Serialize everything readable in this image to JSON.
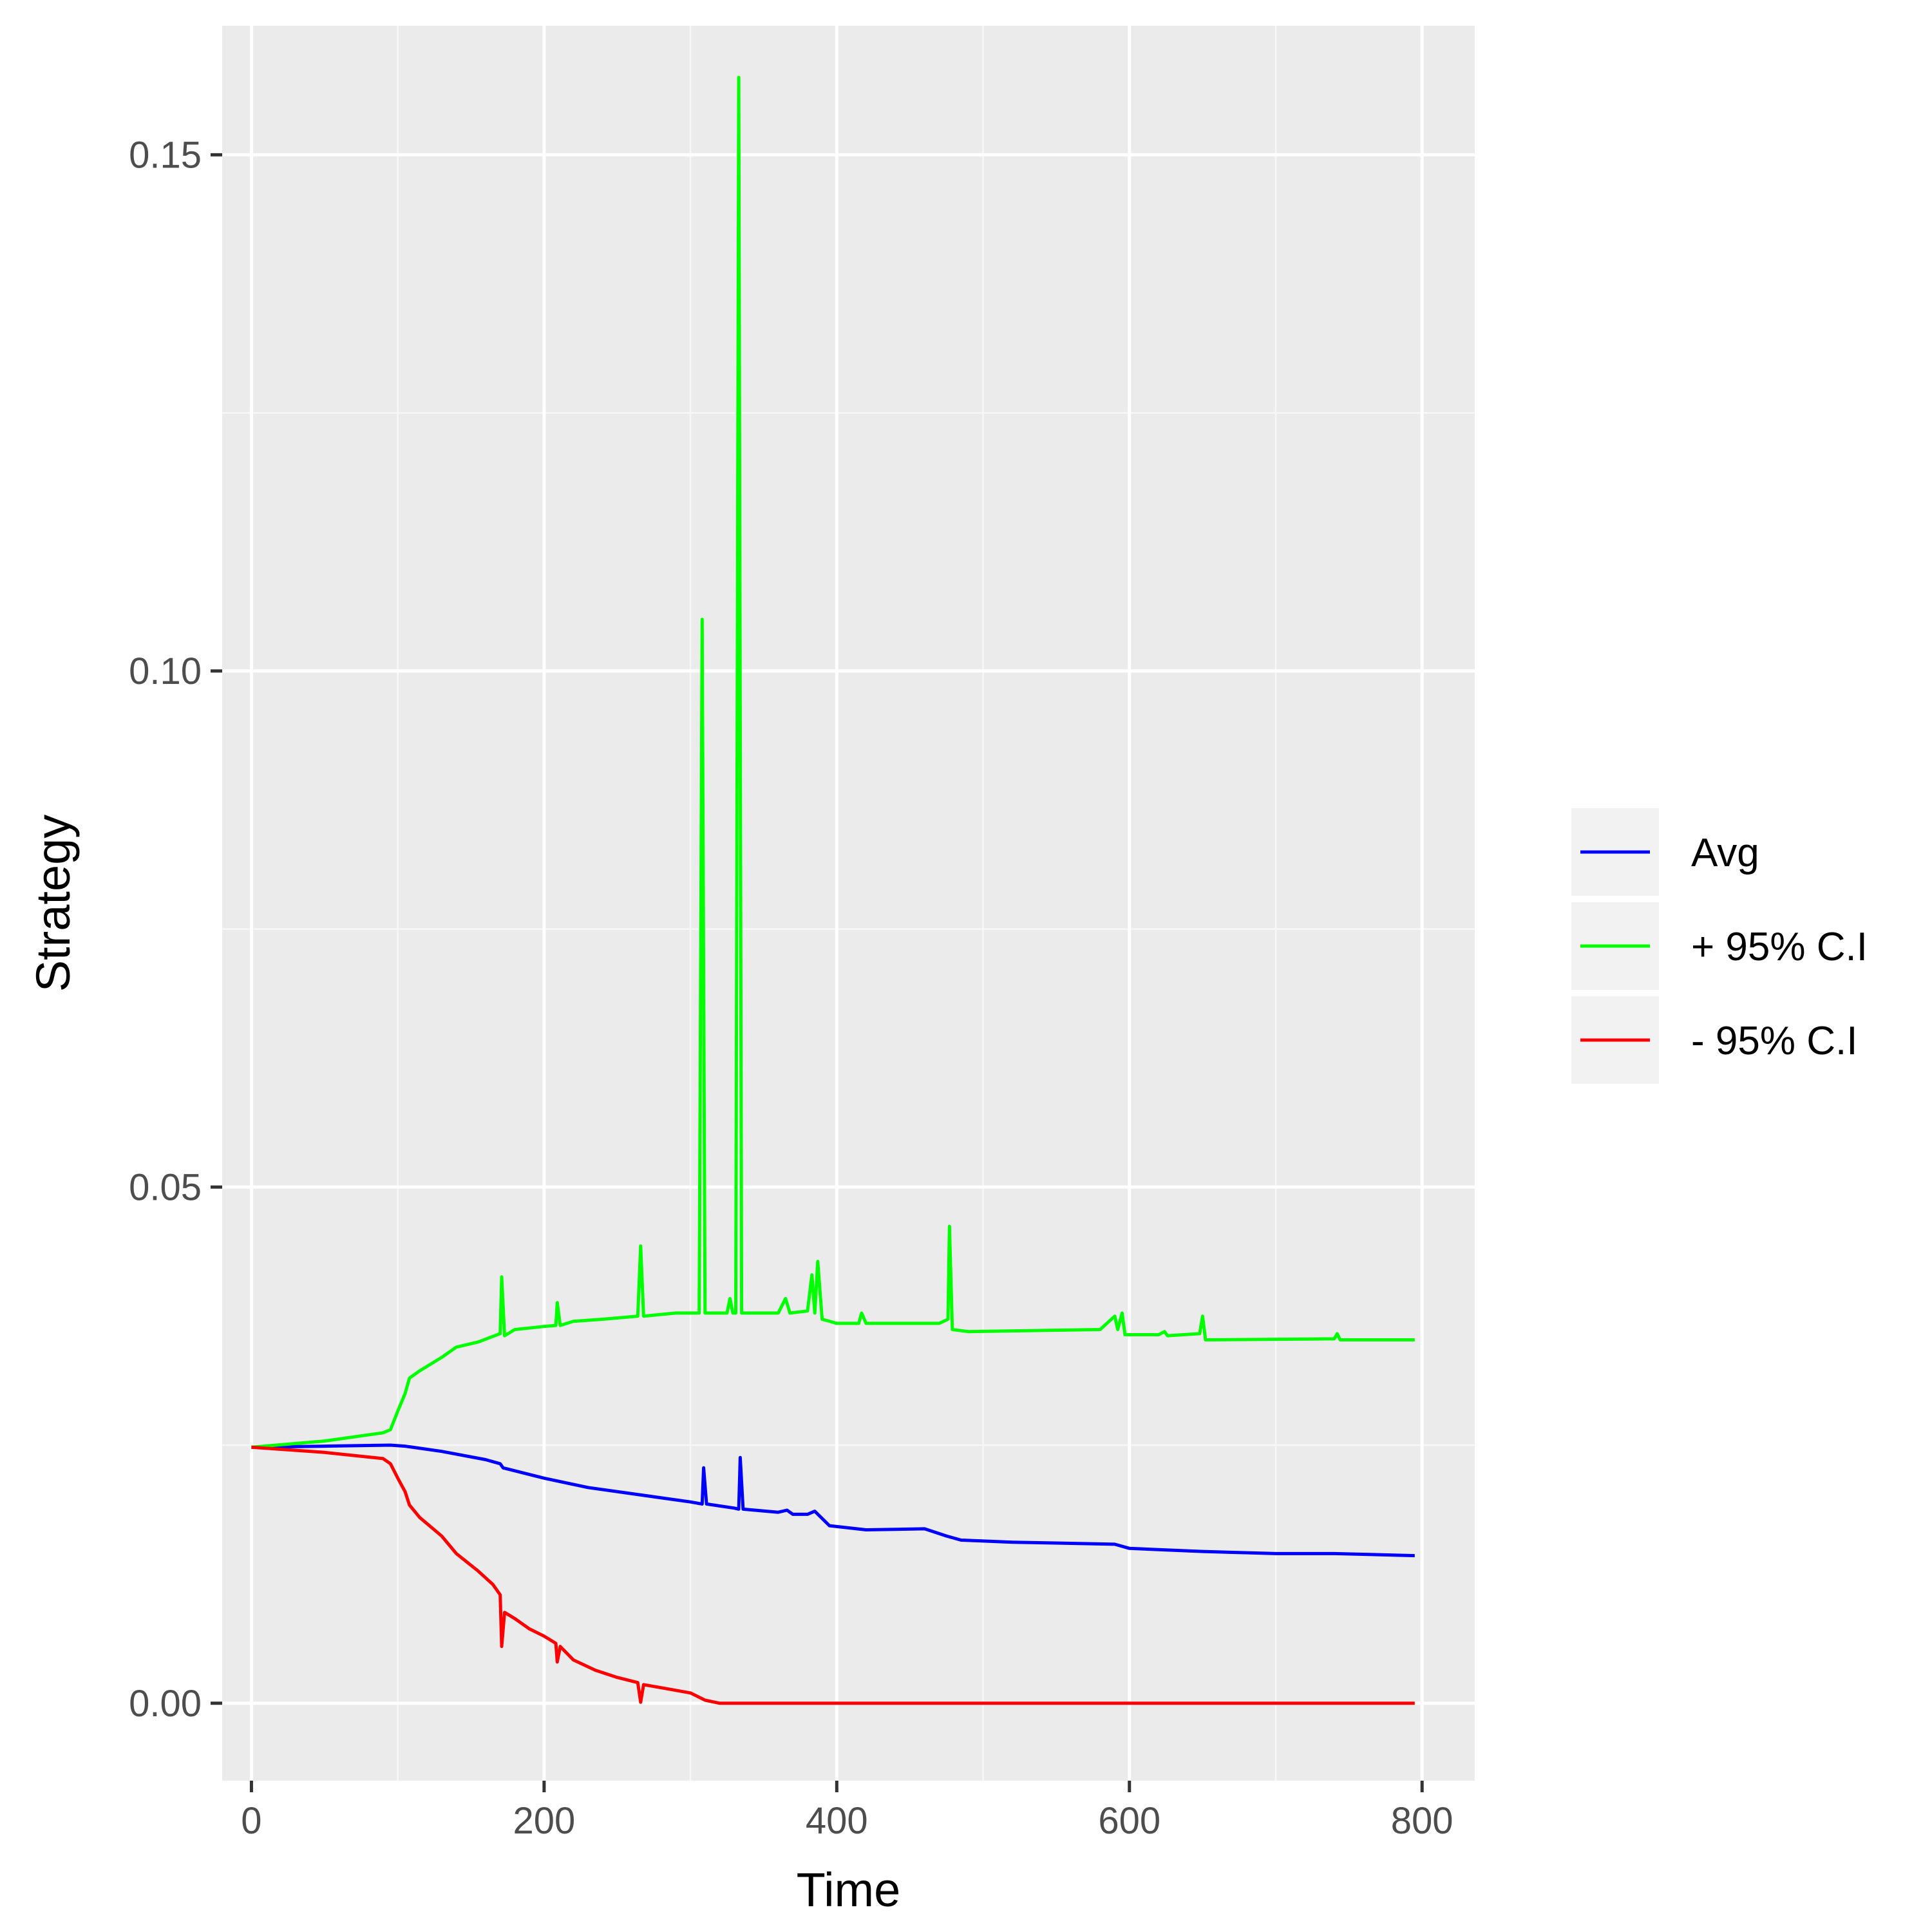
{
  "colors": {
    "panel_bg": "#ebebeb",
    "grid_major": "#ffffff",
    "grid_minor": "#f7f7f7",
    "tick_mark": "#333333",
    "legend_key_bg": "#f2f2f2",
    "avg": "#0000ff",
    "upper": "#00ff00",
    "lower": "#ff0000"
  },
  "chart_data": {
    "type": "line",
    "title": "",
    "xlabel": "Time",
    "ylabel": "Strategy",
    "xlim": [
      -20,
      836
    ],
    "ylim": [
      -0.0075,
      0.1625
    ],
    "xticks": [
      0,
      200,
      400,
      600,
      800
    ],
    "xtick_labels": [
      "0",
      "200",
      "400",
      "600",
      "800"
    ],
    "yticks": [
      0.0,
      0.05,
      0.1,
      0.15
    ],
    "ytick_labels": [
      "0.00",
      "0.05",
      "0.10",
      "0.15"
    ],
    "grid": true,
    "legend_position": "right",
    "series": [
      {
        "name": "Avg",
        "color": "#0000ff",
        "points": [
          [
            0,
            0.0248
          ],
          [
            50,
            0.0249
          ],
          [
            95,
            0.025
          ],
          [
            105,
            0.0249
          ],
          [
            130,
            0.0244
          ],
          [
            160,
            0.0236
          ],
          [
            170,
            0.0232
          ],
          [
            172,
            0.0228
          ],
          [
            200,
            0.0218
          ],
          [
            230,
            0.0209
          ],
          [
            265,
            0.0202
          ],
          [
            300,
            0.0195
          ],
          [
            308,
            0.0193
          ],
          [
            309,
            0.0228
          ],
          [
            311,
            0.0193
          ],
          [
            330,
            0.0189
          ],
          [
            333,
            0.0188
          ],
          [
            334,
            0.0238
          ],
          [
            336,
            0.0188
          ],
          [
            360,
            0.0185
          ],
          [
            366,
            0.0187
          ],
          [
            370,
            0.0183
          ],
          [
            380,
            0.0183
          ],
          [
            385,
            0.0186
          ],
          [
            395,
            0.0172
          ],
          [
            420,
            0.0168
          ],
          [
            460,
            0.0169
          ],
          [
            475,
            0.0162
          ],
          [
            485,
            0.0158
          ],
          [
            520,
            0.0156
          ],
          [
            590,
            0.0154
          ],
          [
            600,
            0.015
          ],
          [
            650,
            0.0147
          ],
          [
            700,
            0.0145
          ],
          [
            740,
            0.0145
          ],
          [
            795,
            0.0143
          ]
        ]
      },
      {
        "name": "+ 95% C.I",
        "color": "#00ff00",
        "points": [
          [
            0,
            0.0248
          ],
          [
            50,
            0.0254
          ],
          [
            90,
            0.0262
          ],
          [
            95,
            0.0265
          ],
          [
            100,
            0.0283
          ],
          [
            105,
            0.03
          ],
          [
            108,
            0.0315
          ],
          [
            115,
            0.0322
          ],
          [
            130,
            0.0335
          ],
          [
            140,
            0.0345
          ],
          [
            155,
            0.035
          ],
          [
            170,
            0.0358
          ],
          [
            171,
            0.0413
          ],
          [
            173,
            0.0356
          ],
          [
            180,
            0.0362
          ],
          [
            200,
            0.0365
          ],
          [
            208,
            0.0366
          ],
          [
            209,
            0.0388
          ],
          [
            211,
            0.0366
          ],
          [
            220,
            0.037
          ],
          [
            240,
            0.0372
          ],
          [
            264,
            0.0375
          ],
          [
            266,
            0.0443
          ],
          [
            268,
            0.0375
          ],
          [
            290,
            0.0378
          ],
          [
            306,
            0.0378
          ],
          [
            308,
            0.105
          ],
          [
            310,
            0.0378
          ],
          [
            325,
            0.0378
          ],
          [
            327,
            0.0392
          ],
          [
            329,
            0.0378
          ],
          [
            331,
            0.0378
          ],
          [
            333,
            0.1575
          ],
          [
            335,
            0.0378
          ],
          [
            360,
            0.0378
          ],
          [
            365,
            0.0392
          ],
          [
            368,
            0.0378
          ],
          [
            380,
            0.038
          ],
          [
            383,
            0.0415
          ],
          [
            385,
            0.0378
          ],
          [
            387,
            0.0428
          ],
          [
            390,
            0.0372
          ],
          [
            400,
            0.0368
          ],
          [
            415,
            0.0368
          ],
          [
            417,
            0.0378
          ],
          [
            420,
            0.0368
          ],
          [
            470,
            0.0368
          ],
          [
            476,
            0.0372
          ],
          [
            477,
            0.0462
          ],
          [
            479,
            0.0362
          ],
          [
            490,
            0.036
          ],
          [
            580,
            0.0362
          ],
          [
            590,
            0.0375
          ],
          [
            592,
            0.0362
          ],
          [
            595,
            0.0378
          ],
          [
            597,
            0.0357
          ],
          [
            620,
            0.0357
          ],
          [
            624,
            0.036
          ],
          [
            626,
            0.0356
          ],
          [
            648,
            0.0358
          ],
          [
            650,
            0.0375
          ],
          [
            652,
            0.0352
          ],
          [
            740,
            0.0353
          ],
          [
            742,
            0.0358
          ],
          [
            744,
            0.0352
          ],
          [
            795,
            0.0352
          ]
        ]
      },
      {
        "name": "- 95% C.I",
        "color": "#ff0000",
        "points": [
          [
            0,
            0.0248
          ],
          [
            50,
            0.0243
          ],
          [
            90,
            0.0237
          ],
          [
            95,
            0.0232
          ],
          [
            100,
            0.0218
          ],
          [
            105,
            0.0205
          ],
          [
            108,
            0.0192
          ],
          [
            115,
            0.018
          ],
          [
            130,
            0.0162
          ],
          [
            140,
            0.0145
          ],
          [
            155,
            0.0128
          ],
          [
            165,
            0.0115
          ],
          [
            170,
            0.0105
          ],
          [
            171,
            0.0055
          ],
          [
            173,
            0.0088
          ],
          [
            180,
            0.0082
          ],
          [
            190,
            0.0072
          ],
          [
            200,
            0.0065
          ],
          [
            208,
            0.0058
          ],
          [
            209,
            0.004
          ],
          [
            211,
            0.0055
          ],
          [
            220,
            0.0042
          ],
          [
            235,
            0.0032
          ],
          [
            250,
            0.0025
          ],
          [
            264,
            0.002
          ],
          [
            266,
            0.0001
          ],
          [
            268,
            0.0018
          ],
          [
            280,
            0.0015
          ],
          [
            300,
            0.001
          ],
          [
            310,
            0.0003
          ],
          [
            320,
            0.0
          ],
          [
            795,
            0.0
          ]
        ]
      }
    ]
  }
}
